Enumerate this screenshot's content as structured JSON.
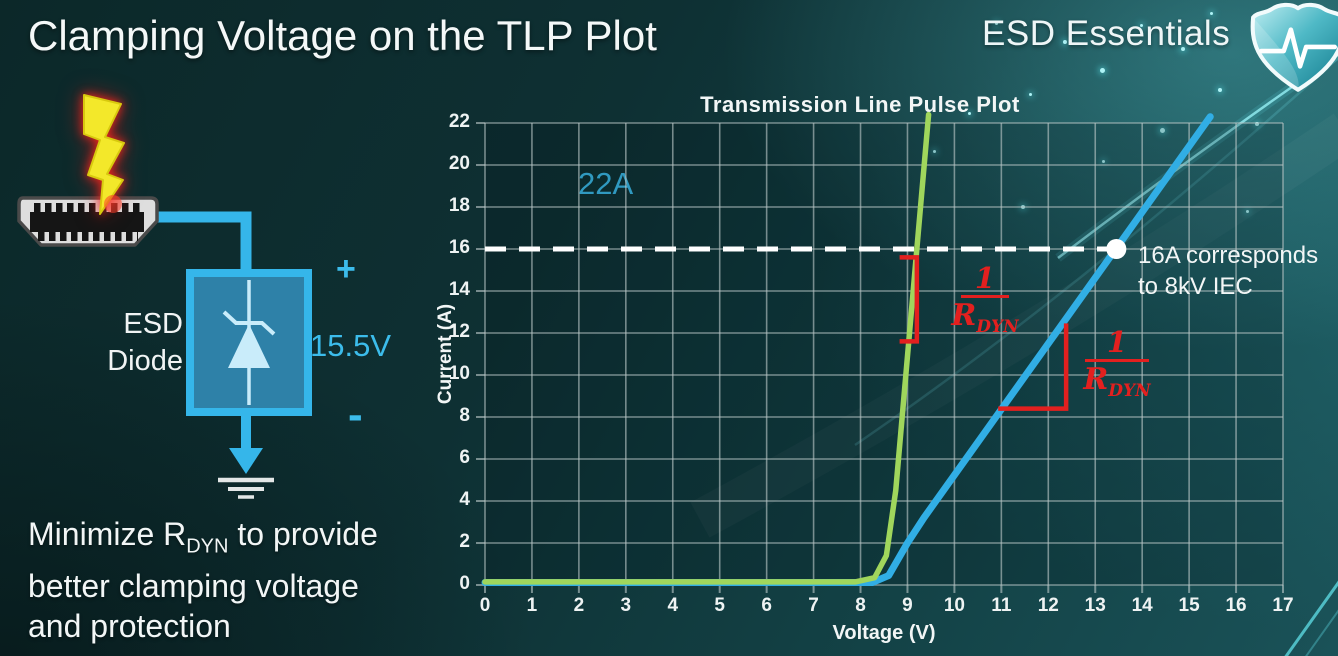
{
  "header": {
    "title": "Clamping Voltage on the TLP Plot",
    "brand": "ESD Essentials"
  },
  "diagram": {
    "surge_current": "22A",
    "device_line1": "ESD",
    "device_line2": "Diode",
    "plus": "+",
    "clamp_voltage": "15.5V",
    "minus": "-"
  },
  "note": {
    "part1": "Minimize R",
    "sub": "DYN",
    "part2": " to provide",
    "line2": "better clamping voltage",
    "line3": "and protection"
  },
  "chart_data": {
    "type": "line",
    "title": "Transmission Line Pulse Plot",
    "xlabel": "Voltage (V)",
    "ylabel": "Current (A)",
    "xlim": [
      0,
      17
    ],
    "ylim": [
      0,
      22
    ],
    "x_ticks": [
      0,
      1,
      2,
      3,
      4,
      5,
      6,
      7,
      8,
      9,
      10,
      11,
      12,
      13,
      14,
      15,
      16,
      17
    ],
    "y_ticks": [
      0,
      2,
      4,
      6,
      8,
      10,
      12,
      14,
      16,
      18,
      20,
      22
    ],
    "grid": "x every 1 V, y every 2 A",
    "series": [
      {
        "name": "blue",
        "color": "#31aee5",
        "width": 7,
        "points": [
          [
            0,
            0.12
          ],
          [
            8.25,
            0.12
          ],
          [
            8.6,
            0.45
          ],
          [
            9.0,
            2.0
          ],
          [
            9.35,
            3.2
          ],
          [
            15.45,
            22.3
          ]
        ]
      },
      {
        "name": "green",
        "color": "#a0d65c",
        "width": 5.5,
        "points": [
          [
            0,
            0.15
          ],
          [
            7.9,
            0.15
          ],
          [
            8.3,
            0.35
          ],
          [
            8.55,
            1.4
          ],
          [
            8.75,
            4.5
          ],
          [
            9.45,
            22.4
          ]
        ]
      }
    ],
    "threshold": {
      "y": 16,
      "color": "#ffffff",
      "style": "dashed"
    },
    "marker": {
      "x": 13.45,
      "y": 16,
      "color": "#ffffff",
      "label_line1": "16A corresponds",
      "label_line2": "to 8kV IEC"
    },
    "annotation_color": "#e3201f",
    "annotations": [
      {
        "numerator": "1",
        "denominator_base": "R",
        "denominator_sub": "DYN",
        "shape": [
          [
            8.88,
            15.6
          ],
          [
            9.2,
            15.6
          ],
          [
            9.2,
            11.6
          ],
          [
            8.88,
            11.6
          ]
        ]
      },
      {
        "numerator": "1",
        "denominator_base": "R",
        "denominator_sub": "DYN",
        "shape": [
          [
            10.98,
            8.4
          ],
          [
            12.38,
            8.4
          ],
          [
            12.38,
            12.35
          ]
        ]
      }
    ]
  },
  "colors": {
    "accent_cyan": "#3cbceb",
    "curve_green": "#a0d65c",
    "curve_blue": "#31aee5",
    "annotation_red": "#e3201f",
    "background_teal": "#0e3033"
  }
}
